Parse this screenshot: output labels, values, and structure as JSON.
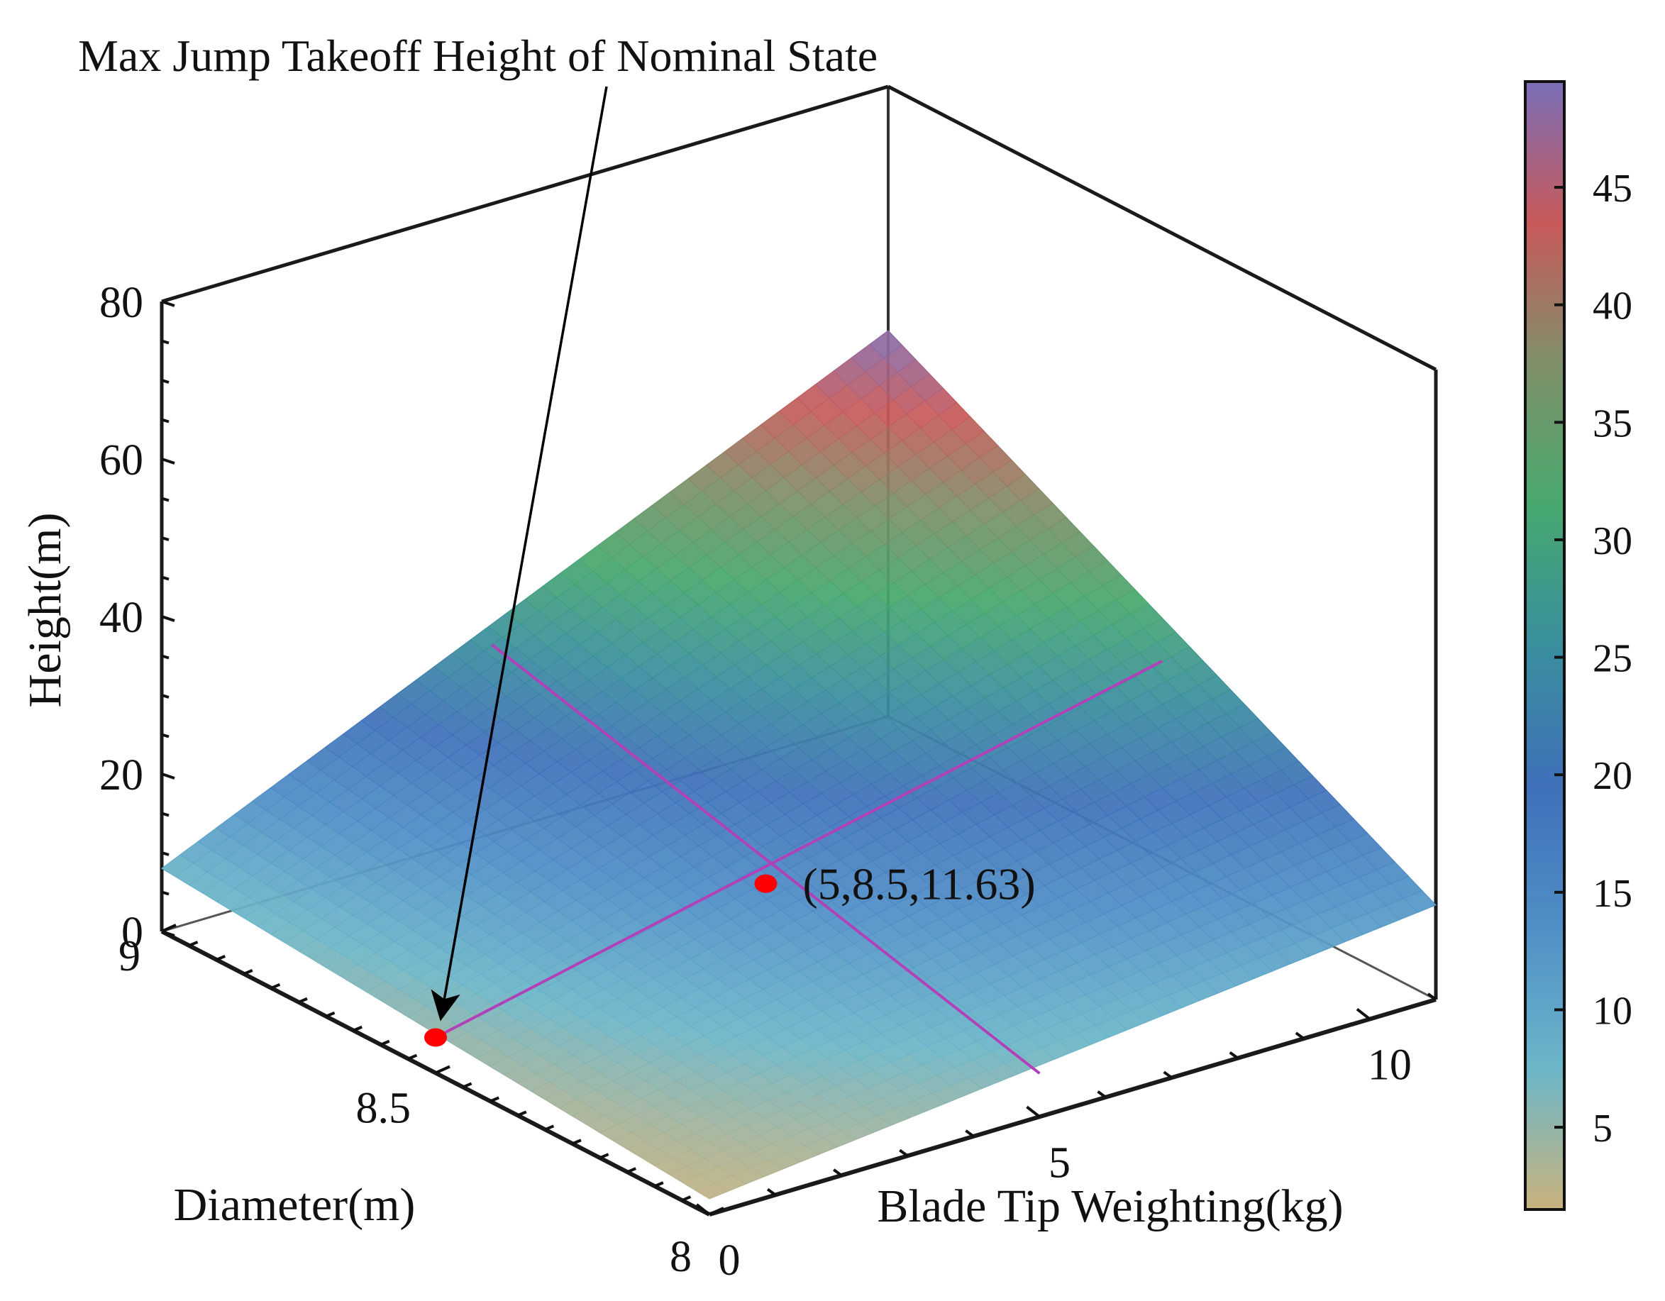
{
  "chart_data": {
    "type": "surface",
    "annotation": "Max Jump Takeoff Height of Nominal State",
    "xlabel": "Blade Tip Weighting(kg)",
    "ylabel": "Diameter(m)",
    "zlabel": "Height(m)",
    "x_ticks": [
      "0",
      "5",
      "10"
    ],
    "y_ticks": [
      "8",
      "8.5",
      "9"
    ],
    "z_ticks": [
      "0",
      "20",
      "40",
      "60",
      "80"
    ],
    "xlim": [
      0,
      11
    ],
    "ylim": [
      8,
      9
    ],
    "zlim": [
      0,
      80
    ],
    "grid": false,
    "surface": {
      "x": [
        0,
        11
      ],
      "y": [
        8,
        9
      ],
      "z": [
        [
          2,
          8
        ],
        [
          12,
          49
        ]
      ],
      "comment_rows": "z[i][j] with i over x and j over y"
    },
    "series": [
      {
        "name": "",
        "type": "line",
        "x": [
          0,
          11
        ],
        "y": [
          8.5,
          8.5
        ],
        "z": [
          4.5,
          25
        ]
      },
      {
        "name": "",
        "type": "line",
        "x": [
          5,
          5
        ],
        "y": [
          8,
          9
        ],
        "z": [
          5.5,
          24
        ]
      }
    ],
    "points": [
      {
        "x": 5,
        "y": 8.5,
        "z": 11.63,
        "label": "(5,8.5,11.63)"
      },
      {
        "x": 0,
        "y": 8.5,
        "z": 4.5,
        "label": ""
      }
    ],
    "colorbar": {
      "ticks": [
        "5",
        "10",
        "15",
        "20",
        "25",
        "30",
        "35",
        "40",
        "45"
      ],
      "range": [
        1.5,
        49.5
      ],
      "colors": [
        "#c9b27d",
        "#6bb6c8",
        "#4f8fc7",
        "#3f70b9",
        "#3a8f9e",
        "#47a86e",
        "#7f8f6a",
        "#c85a5a",
        "#7b6fb8"
      ]
    }
  }
}
